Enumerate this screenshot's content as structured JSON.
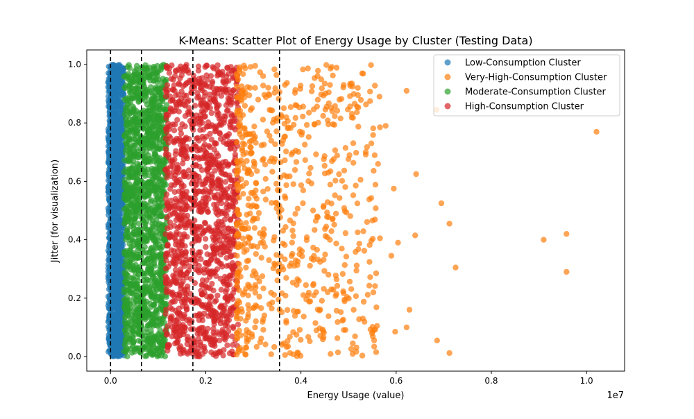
{
  "chart_data": {
    "type": "scatter",
    "title": "K-Means: Scatter Plot of Energy Usage by Cluster (Testing Data)",
    "xlabel": "Energy Usage (value)",
    "ylabel": "Jitter (for visualization)",
    "x_offset_label": "1e7",
    "xlim": [
      -0.05,
      1.08
    ],
    "ylim": [
      -0.05,
      1.05
    ],
    "xticks": [
      0.0,
      0.2,
      0.4,
      0.6,
      0.8,
      1.0
    ],
    "xtick_labels": [
      "0.0",
      "0.2",
      "0.4",
      "0.6",
      "0.8",
      "1.0"
    ],
    "yticks": [
      0.0,
      0.2,
      0.4,
      0.6,
      0.8,
      1.0
    ],
    "ytick_labels": [
      "0.0",
      "0.2",
      "0.4",
      "0.6",
      "0.8",
      "1.0"
    ],
    "grid": false,
    "legend_position": "top-right",
    "vlines": [
      0.0,
      0.065,
      0.173,
      0.355
    ],
    "vline_style": "dashed-black",
    "series": [
      {
        "name": "Low-Consumption Cluster",
        "color": "#1f77b4",
        "x_range": [
          -0.005,
          0.028
        ],
        "y_range": [
          0.0,
          1.0
        ],
        "density": "very-high",
        "outliers": []
      },
      {
        "name": "Very-High-Consumption Cluster",
        "color": "#ff7f0e",
        "x_range": [
          0.265,
          0.56
        ],
        "y_range": [
          0.0,
          1.0
        ],
        "density": "decreasing",
        "outliers": [
          [
            0.622,
            0.91
          ],
          [
            0.685,
            0.845
          ],
          [
            0.578,
            0.79
          ],
          [
            0.566,
            0.785
          ],
          [
            0.642,
            0.625
          ],
          [
            0.595,
            0.575
          ],
          [
            0.695,
            0.525
          ],
          [
            0.712,
            0.455
          ],
          [
            0.64,
            0.415
          ],
          [
            0.604,
            0.39
          ],
          [
            0.566,
            0.405
          ],
          [
            0.59,
            0.345
          ],
          [
            0.725,
            0.305
          ],
          [
            0.558,
            0.285
          ],
          [
            0.628,
            0.16
          ],
          [
            0.622,
            0.1
          ],
          [
            0.598,
            0.085
          ],
          [
            0.686,
            0.055
          ],
          [
            0.712,
            0.012
          ],
          [
            0.558,
            0.015
          ],
          [
            0.91,
            0.4
          ],
          [
            0.958,
            0.42
          ],
          [
            0.958,
            0.29
          ],
          [
            1.021,
            0.77
          ],
          [
            0.565,
            0.89
          ],
          [
            0.548,
            0.73
          ],
          [
            0.562,
            0.66
          ],
          [
            0.53,
            0.13
          ]
        ]
      },
      {
        "name": "Moderate-Consumption Cluster",
        "color": "#2ca02c",
        "x_range": [
          0.028,
          0.118
        ],
        "y_range": [
          0.0,
          1.0
        ],
        "density": "very-high",
        "outliers": []
      },
      {
        "name": "High-Consumption Cluster",
        "color": "#d62728",
        "x_range": [
          0.115,
          0.268
        ],
        "y_range": [
          0.0,
          1.0
        ],
        "density": "high",
        "outliers": []
      }
    ]
  }
}
